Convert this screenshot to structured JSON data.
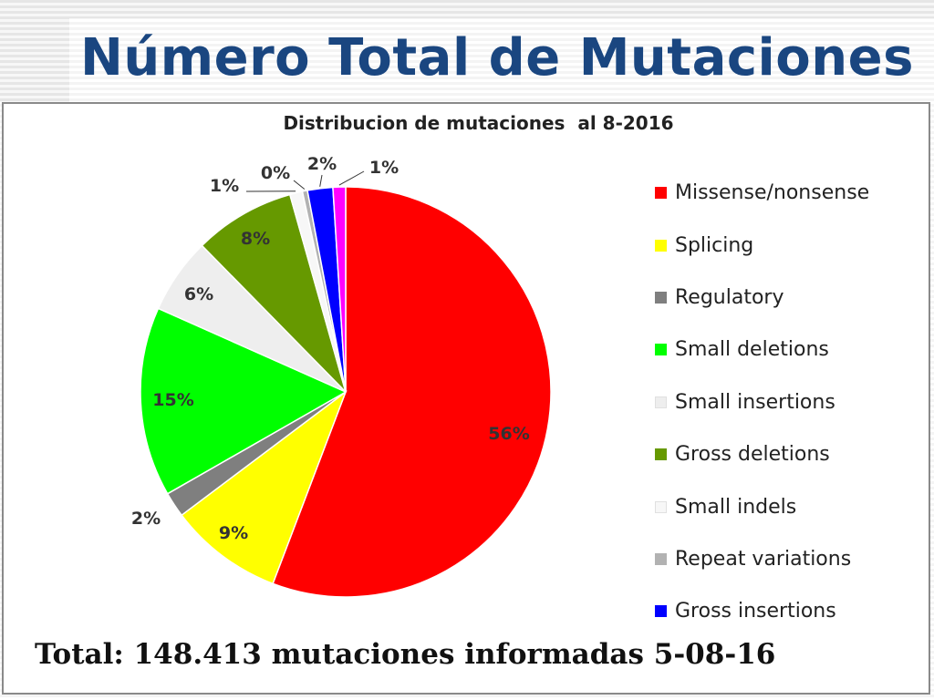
{
  "page": {
    "title": "Número Total de Mutaciones",
    "total_text": "Total: 148.413 mutaciones informadas 5-08-16"
  },
  "chart_data": {
    "type": "pie",
    "title": "Distribucion de mutaciones  al 8-2016",
    "legend_position": "right",
    "series": [
      {
        "name": "Missense/nonsense",
        "value": 56,
        "label": "56%",
        "color": "#ff0000"
      },
      {
        "name": "Splicing",
        "value": 9,
        "label": "9%",
        "color": "#ffff00"
      },
      {
        "name": "Regulatory",
        "value": 2,
        "label": "2%",
        "color": "#7f7f7f"
      },
      {
        "name": "Small deletions",
        "value": 15,
        "label": "15%",
        "color": "#00ff00"
      },
      {
        "name": "Small insertions",
        "value": 6,
        "label": "6%",
        "color": "#eeeeee"
      },
      {
        "name": "Gross deletions",
        "value": 8,
        "label": "8%",
        "color": "#669900"
      },
      {
        "name": "Small indels",
        "value": 1,
        "label": "1%",
        "color": "#f7f7f7"
      },
      {
        "name": "Repeat variations",
        "value": 0.4,
        "label": "0%",
        "color": "#b2b2b2"
      },
      {
        "name": "Gross insertions",
        "value": 2,
        "label": "2%",
        "color": "#0000ff"
      },
      {
        "name": "",
        "value": 1,
        "label": "1%",
        "color": "#ff00ff"
      }
    ]
  }
}
